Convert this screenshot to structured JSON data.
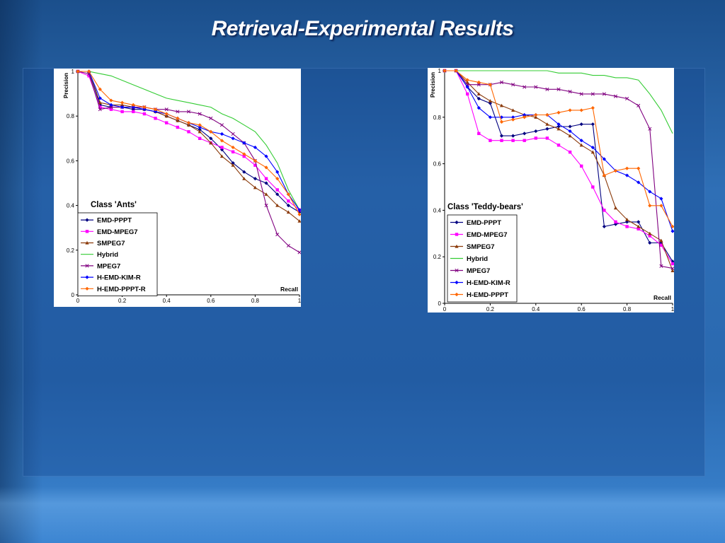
{
  "slide": {
    "title": "Retrieval-Experimental  Results"
  },
  "chart_data": [
    {
      "type": "line",
      "title": "Class 'Ants'",
      "xlabel": "Recall",
      "ylabel": "Precision",
      "xlim": [
        0,
        1
      ],
      "ylim": [
        0,
        1
      ],
      "xticks": [
        "0",
        "0.2",
        "0.4",
        "0.6",
        "0.8",
        "1"
      ],
      "yticks": [
        "0",
        "0.2",
        "0.4",
        "0.6",
        "0.8",
        "1"
      ],
      "legend_position": "bottom-left",
      "series": [
        {
          "name": "EMD-PPPT",
          "color": "#000080",
          "marker": "diamond",
          "x": [
            0,
            0.05,
            0.1,
            0.15,
            0.2,
            0.25,
            0.3,
            0.35,
            0.4,
            0.45,
            0.5,
            0.55,
            0.6,
            0.65,
            0.7,
            0.75,
            0.8,
            0.85,
            0.9,
            0.95,
            1.0
          ],
          "y": [
            1.0,
            1.0,
            0.85,
            0.84,
            0.84,
            0.83,
            0.83,
            0.82,
            0.8,
            0.78,
            0.76,
            0.74,
            0.7,
            0.65,
            0.59,
            0.55,
            0.52,
            0.5,
            0.45,
            0.4,
            0.37
          ]
        },
        {
          "name": "EMD-MPEG7",
          "color": "#ff00ff",
          "marker": "square",
          "x": [
            0,
            0.05,
            0.1,
            0.15,
            0.2,
            0.25,
            0.3,
            0.35,
            0.4,
            0.45,
            0.5,
            0.55,
            0.6,
            0.65,
            0.7,
            0.75,
            0.8,
            0.85,
            0.9,
            0.95,
            1.0
          ],
          "y": [
            1.0,
            0.98,
            0.84,
            0.83,
            0.82,
            0.82,
            0.81,
            0.79,
            0.77,
            0.75,
            0.73,
            0.7,
            0.68,
            0.66,
            0.64,
            0.62,
            0.58,
            0.52,
            0.47,
            0.42,
            0.38
          ]
        },
        {
          "name": "SMPEG7",
          "color": "#8b3a0a",
          "marker": "triangle",
          "x": [
            0,
            0.05,
            0.1,
            0.15,
            0.2,
            0.25,
            0.3,
            0.35,
            0.4,
            0.45,
            0.5,
            0.55,
            0.6,
            0.65,
            0.7,
            0.75,
            0.8,
            0.85,
            0.9,
            0.95,
            1.0
          ],
          "y": [
            1.0,
            1.0,
            0.86,
            0.85,
            0.85,
            0.84,
            0.83,
            0.82,
            0.8,
            0.78,
            0.76,
            0.73,
            0.68,
            0.62,
            0.58,
            0.52,
            0.48,
            0.45,
            0.4,
            0.37,
            0.33
          ]
        },
        {
          "name": "Hybrid",
          "color": "#33cc33",
          "marker": "none",
          "x": [
            0,
            0.05,
            0.1,
            0.15,
            0.2,
            0.25,
            0.3,
            0.35,
            0.4,
            0.45,
            0.5,
            0.55,
            0.6,
            0.65,
            0.7,
            0.75,
            0.8,
            0.85,
            0.9,
            0.95,
            1.0
          ],
          "y": [
            1.0,
            1.0,
            0.99,
            0.98,
            0.96,
            0.94,
            0.92,
            0.9,
            0.88,
            0.87,
            0.86,
            0.85,
            0.84,
            0.81,
            0.79,
            0.76,
            0.73,
            0.67,
            0.59,
            0.47,
            0.38
          ]
        },
        {
          "name": "MPEG7",
          "color": "#800080",
          "marker": "x",
          "x": [
            0,
            0.05,
            0.1,
            0.15,
            0.2,
            0.25,
            0.3,
            0.35,
            0.4,
            0.45,
            0.5,
            0.55,
            0.6,
            0.65,
            0.7,
            0.75,
            0.8,
            0.85,
            0.9,
            0.95,
            1.0
          ],
          "y": [
            1.0,
            0.99,
            0.83,
            0.84,
            0.84,
            0.84,
            0.84,
            0.83,
            0.83,
            0.82,
            0.82,
            0.81,
            0.79,
            0.76,
            0.72,
            0.68,
            0.6,
            0.4,
            0.27,
            0.22,
            0.19
          ]
        },
        {
          "name": "H-EMD-KIM-R",
          "color": "#0000ff",
          "marker": "diamond",
          "x": [
            0,
            0.05,
            0.1,
            0.15,
            0.2,
            0.25,
            0.3,
            0.35,
            0.4,
            0.45,
            0.5,
            0.55,
            0.6,
            0.65,
            0.7,
            0.75,
            0.8,
            0.85,
            0.9,
            0.95,
            1.0
          ],
          "y": [
            1.0,
            1.0,
            0.88,
            0.85,
            0.84,
            0.84,
            0.83,
            0.82,
            0.81,
            0.79,
            0.77,
            0.75,
            0.73,
            0.72,
            0.7,
            0.68,
            0.66,
            0.62,
            0.55,
            0.45,
            0.38
          ]
        },
        {
          "name": "H-EMD-PPPT-R",
          "color": "#ff6600",
          "marker": "diamond",
          "x": [
            0,
            0.05,
            0.1,
            0.15,
            0.2,
            0.25,
            0.3,
            0.35,
            0.4,
            0.45,
            0.5,
            0.55,
            0.6,
            0.65,
            0.7,
            0.75,
            0.8,
            0.85,
            0.9,
            0.95,
            1.0
          ],
          "y": [
            1.0,
            1.0,
            0.92,
            0.87,
            0.86,
            0.85,
            0.84,
            0.83,
            0.81,
            0.79,
            0.77,
            0.76,
            0.73,
            0.69,
            0.66,
            0.63,
            0.6,
            0.57,
            0.52,
            0.45,
            0.36
          ]
        }
      ]
    },
    {
      "type": "line",
      "title": "Class 'Teddy-bears'",
      "xlabel": "Recall",
      "ylabel": "Precision",
      "xlim": [
        0,
        1
      ],
      "ylim": [
        0,
        1
      ],
      "xticks": [
        "0",
        "0.2",
        "0.4",
        "0.6",
        "0.8",
        "1"
      ],
      "yticks": [
        "0",
        "0.2",
        "0.4",
        "0.6",
        "0.8",
        "1"
      ],
      "legend_position": "bottom-left",
      "series": [
        {
          "name": "EMD-PPPT",
          "color": "#000080",
          "marker": "diamond",
          "x": [
            0,
            0.05,
            0.1,
            0.15,
            0.2,
            0.25,
            0.3,
            0.35,
            0.4,
            0.45,
            0.5,
            0.55,
            0.6,
            0.65,
            0.7,
            0.75,
            0.8,
            0.85,
            0.9,
            0.95,
            1.0
          ],
          "y": [
            1.0,
            1.0,
            0.93,
            0.88,
            0.86,
            0.72,
            0.72,
            0.73,
            0.74,
            0.75,
            0.76,
            0.76,
            0.77,
            0.77,
            0.33,
            0.34,
            0.35,
            0.35,
            0.26,
            0.26,
            0.18
          ]
        },
        {
          "name": "EMD-MPEG7",
          "color": "#ff00ff",
          "marker": "square",
          "x": [
            0,
            0.05,
            0.1,
            0.15,
            0.2,
            0.25,
            0.3,
            0.35,
            0.4,
            0.45,
            0.5,
            0.55,
            0.6,
            0.65,
            0.7,
            0.75,
            0.8,
            0.85,
            0.9,
            0.95,
            1.0
          ],
          "y": [
            1.0,
            1.0,
            0.9,
            0.73,
            0.7,
            0.7,
            0.7,
            0.7,
            0.71,
            0.71,
            0.68,
            0.65,
            0.59,
            0.5,
            0.4,
            0.35,
            0.33,
            0.32,
            0.29,
            0.25,
            0.17
          ]
        },
        {
          "name": "SMPEG7",
          "color": "#8b3a0a",
          "marker": "triangle",
          "x": [
            0,
            0.05,
            0.1,
            0.15,
            0.2,
            0.25,
            0.3,
            0.35,
            0.4,
            0.45,
            0.5,
            0.55,
            0.6,
            0.65,
            0.7,
            0.75,
            0.8,
            0.85,
            0.9,
            0.95,
            1.0
          ],
          "y": [
            1.0,
            1.0,
            0.95,
            0.9,
            0.87,
            0.85,
            0.83,
            0.81,
            0.8,
            0.77,
            0.75,
            0.72,
            0.68,
            0.65,
            0.55,
            0.41,
            0.36,
            0.33,
            0.3,
            0.27,
            0.14
          ]
        },
        {
          "name": "Hybrid",
          "color": "#33cc33",
          "marker": "none",
          "x": [
            0,
            0.05,
            0.1,
            0.15,
            0.2,
            0.25,
            0.3,
            0.35,
            0.4,
            0.45,
            0.5,
            0.55,
            0.6,
            0.65,
            0.7,
            0.75,
            0.8,
            0.85,
            0.9,
            0.95,
            1.0
          ],
          "y": [
            1.0,
            1.0,
            1.0,
            1.0,
            1.0,
            1.0,
            1.0,
            1.0,
            1.0,
            1.0,
            0.99,
            0.99,
            0.99,
            0.98,
            0.98,
            0.97,
            0.97,
            0.96,
            0.9,
            0.83,
            0.73
          ]
        },
        {
          "name": "MPEG7",
          "color": "#800080",
          "marker": "x",
          "x": [
            0,
            0.05,
            0.1,
            0.15,
            0.2,
            0.25,
            0.3,
            0.35,
            0.4,
            0.45,
            0.5,
            0.55,
            0.6,
            0.65,
            0.7,
            0.75,
            0.8,
            0.85,
            0.9,
            0.95,
            1.0
          ],
          "y": [
            1.0,
            1.0,
            0.94,
            0.94,
            0.94,
            0.95,
            0.94,
            0.93,
            0.93,
            0.92,
            0.92,
            0.91,
            0.9,
            0.9,
            0.9,
            0.89,
            0.88,
            0.85,
            0.75,
            0.16,
            0.15
          ]
        },
        {
          "name": "H-EMD-KIM-R",
          "color": "#0000ff",
          "marker": "diamond",
          "x": [
            0,
            0.05,
            0.1,
            0.15,
            0.2,
            0.25,
            0.3,
            0.35,
            0.4,
            0.45,
            0.5,
            0.55,
            0.6,
            0.65,
            0.7,
            0.75,
            0.8,
            0.85,
            0.9,
            0.95,
            1.0
          ],
          "y": [
            1.0,
            1.0,
            0.93,
            0.84,
            0.8,
            0.8,
            0.8,
            0.81,
            0.81,
            0.81,
            0.77,
            0.74,
            0.7,
            0.67,
            0.62,
            0.57,
            0.55,
            0.52,
            0.48,
            0.45,
            0.31
          ]
        },
        {
          "name": "H-EMD-PPPT",
          "color": "#ff6600",
          "marker": "diamond",
          "x": [
            0,
            0.05,
            0.1,
            0.15,
            0.2,
            0.25,
            0.3,
            0.35,
            0.4,
            0.45,
            0.5,
            0.55,
            0.6,
            0.65,
            0.7,
            0.75,
            0.8,
            0.85,
            0.9,
            0.95,
            1.0
          ],
          "y": [
            1.0,
            1.0,
            0.96,
            0.95,
            0.94,
            0.78,
            0.79,
            0.8,
            0.81,
            0.81,
            0.82,
            0.83,
            0.83,
            0.84,
            0.55,
            0.57,
            0.58,
            0.58,
            0.42,
            0.42,
            0.33
          ]
        }
      ]
    }
  ]
}
